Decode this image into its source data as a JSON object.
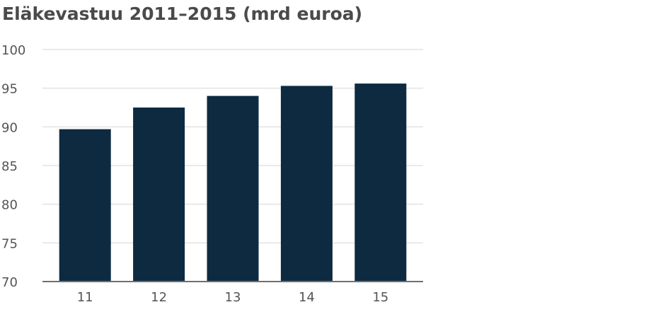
{
  "chart_data": {
    "type": "bar",
    "title": "Eläkevastuu 2011–2015 (mrd euroa)",
    "categories": [
      "11",
      "12",
      "13",
      "14",
      "15"
    ],
    "values": [
      89.7,
      92.5,
      94.0,
      95.3,
      95.6
    ],
    "xlabel": "",
    "ylabel": "",
    "ylim": [
      70,
      100
    ],
    "yticks": [
      70,
      75,
      80,
      85,
      90,
      95,
      100
    ],
    "grid": true,
    "legend": "none",
    "bar_color": "#0e2a40",
    "grid_color": "#e2e2e2",
    "axis_color": "#6f6f6f",
    "text_color": "#555555"
  }
}
